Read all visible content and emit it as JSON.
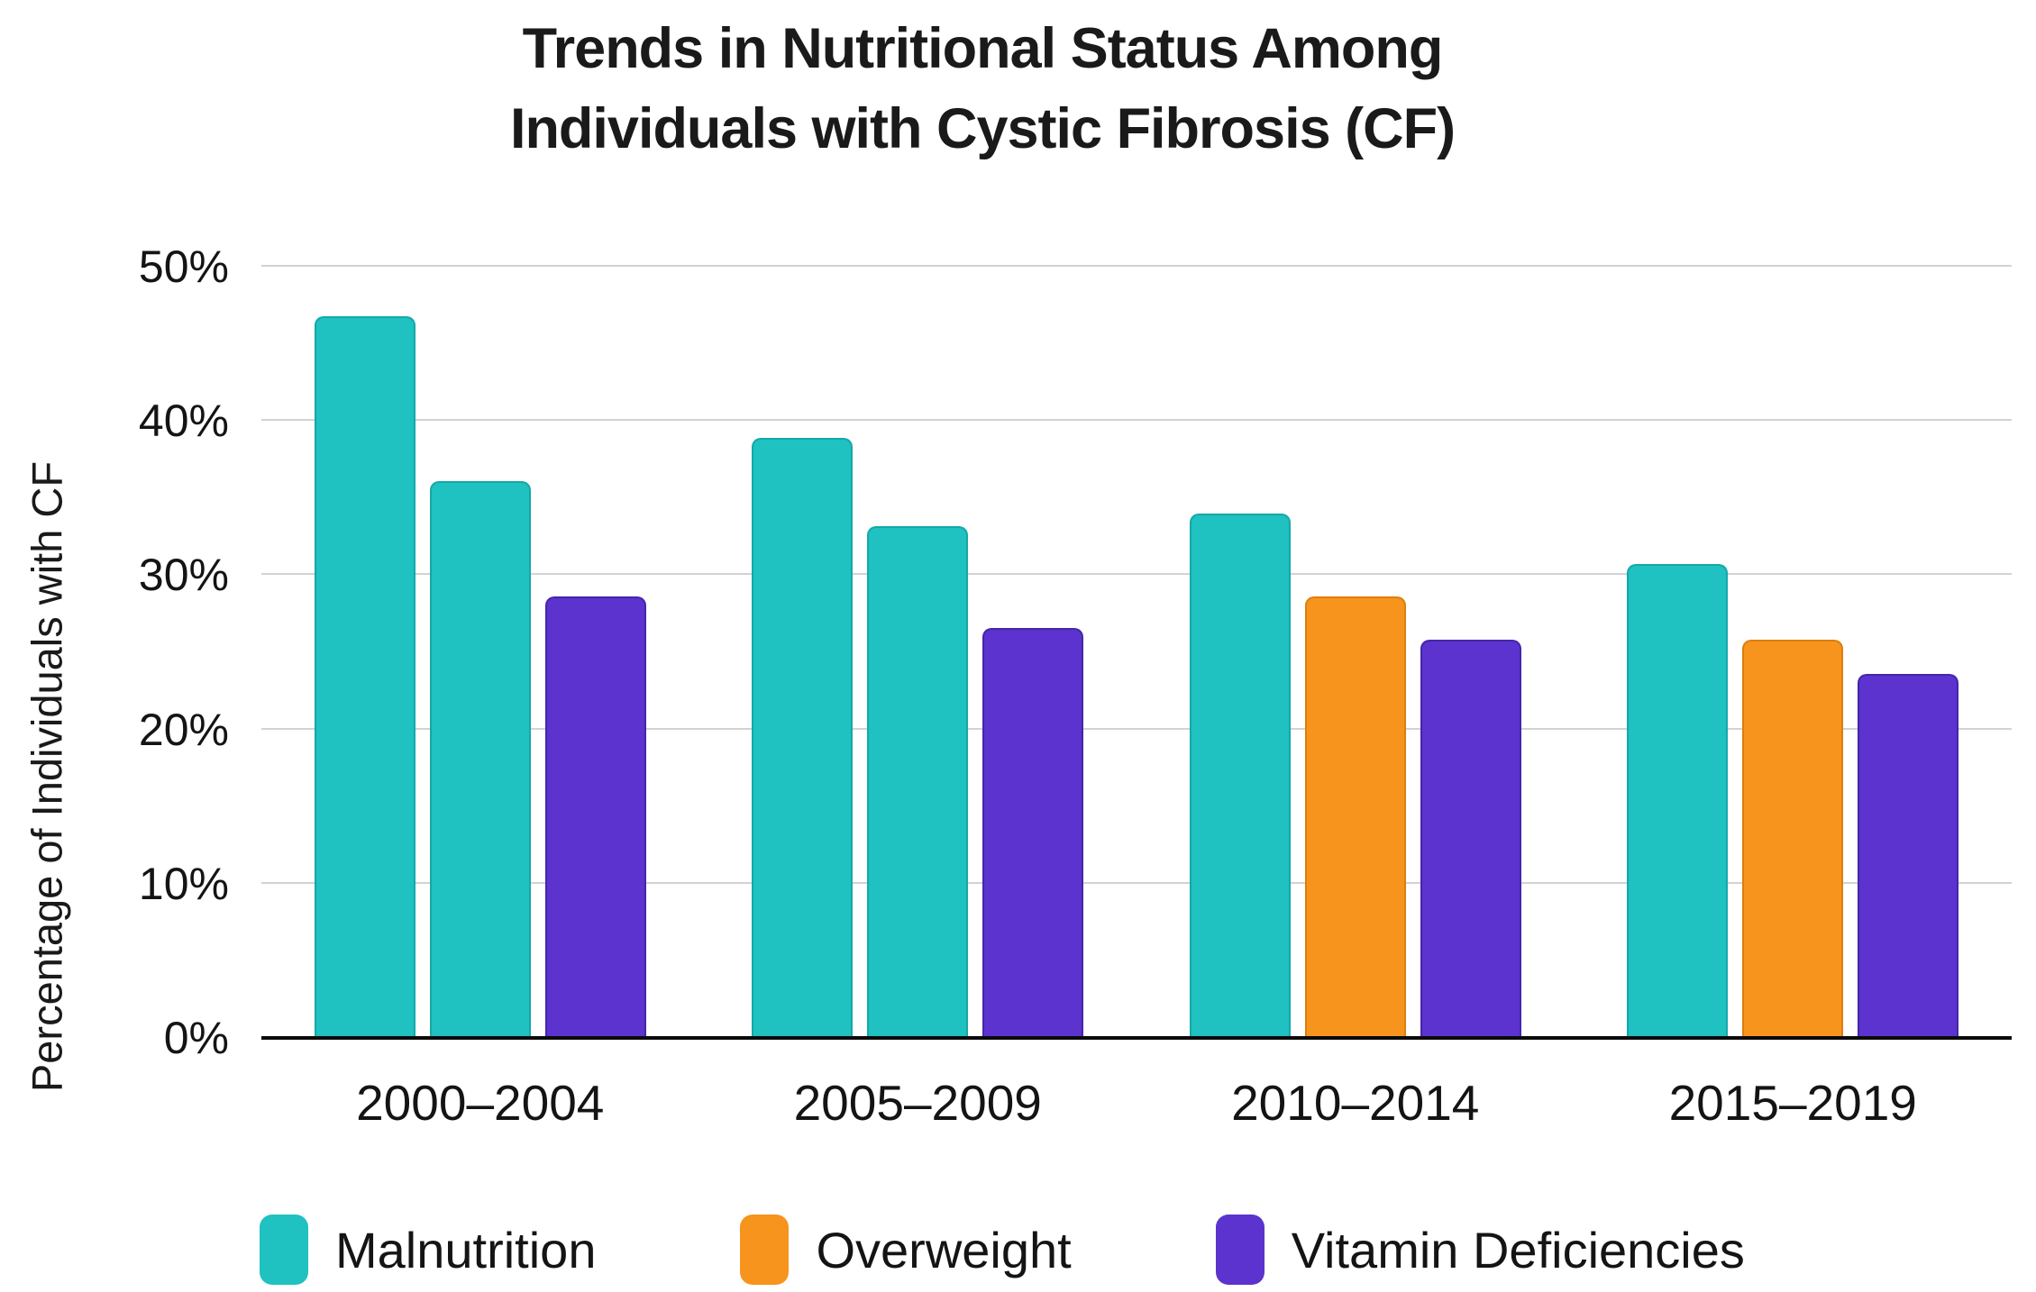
{
  "page": {
    "background": "#ffffff"
  },
  "title": {
    "line1": "Trends in Nutritional Status Among",
    "line2": "Individuals with Cystic Fibrosis (CF)"
  },
  "y_axis": {
    "label": "Percentage of Individuals with CF",
    "ticks": [
      "0%",
      "10%",
      "20%",
      "30%",
      "40%",
      "50%"
    ]
  },
  "x_axis": {
    "categories": [
      "2000–2004",
      "2005–2009",
      "2010–2014",
      "2015–2019"
    ]
  },
  "legend": [
    {
      "label": "Malnutrition",
      "color_key": "teal"
    },
    {
      "label": "Overweight",
      "color_key": "orange"
    },
    {
      "label": "Vitamin Deficiencies",
      "color_key": "purple"
    }
  ],
  "palette": {
    "teal": "#1FC1C1",
    "teal_border": "#14A8A8",
    "orange": "#F7941E",
    "orange_border": "#DD7E0C",
    "purple": "#5C33CE",
    "purple_border": "#4526A9",
    "gridline": "#D2D2D2",
    "axis": "#0A0A0A",
    "text": "#141414"
  },
  "chart_data": {
    "type": "bar",
    "title": "Trends in Nutritional Status Among Individuals with Cystic Fibrosis (CF)",
    "xlabel": "",
    "ylabel": "Percentage of Individuals with CF",
    "categories": [
      "2000–2004",
      "2005–2009",
      "2010–2014",
      "2015–2019"
    ],
    "series": [
      {
        "name": "Malnutrition",
        "color": "#1FC1C1",
        "values": [
          46.8,
          38.9,
          34.0,
          30.7
        ],
        "bar_color_keys": [
          "teal",
          "teal",
          "teal",
          "teal"
        ]
      },
      {
        "name": "Overweight",
        "color": "#F7941E",
        "values": [
          36.1,
          33.2,
          28.6,
          25.8
        ],
        "bar_color_keys": [
          "teal",
          "teal",
          "orange",
          "orange"
        ],
        "note": "rendered with teal fill (same as Malnutrition) in the 2000–2004 and 2005–2009 groups"
      },
      {
        "name": "Vitamin Deficiencies",
        "color": "#5C33CE",
        "values": [
          28.6,
          26.6,
          25.8,
          23.6
        ],
        "bar_color_keys": [
          "purple",
          "purple",
          "purple",
          "purple"
        ]
      }
    ],
    "ylim": [
      0,
      50
    ],
    "ytick_values": [
      0,
      10,
      20,
      30,
      40,
      50
    ],
    "ytick_labels": [
      "0%",
      "10%",
      "20%",
      "30%",
      "40%",
      "50%"
    ],
    "grid": true,
    "legend_position": "bottom"
  }
}
